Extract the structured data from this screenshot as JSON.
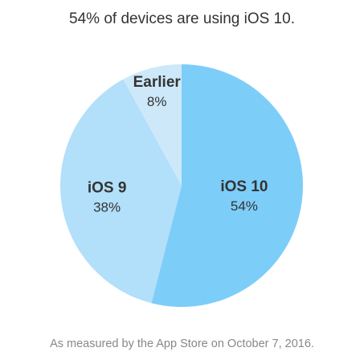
{
  "header": {
    "title": "54% of devices are using iOS 10."
  },
  "footer": {
    "caption": "As measured by the App Store on October 7, 2016."
  },
  "chart_data": {
    "type": "pie",
    "title": "54% of devices are using iOS 10.",
    "categories": [
      "iOS 10",
      "iOS 9",
      "Earlier"
    ],
    "values": [
      54,
      38,
      8
    ],
    "value_labels": [
      "54%",
      "38%",
      "8%"
    ],
    "colors": [
      "#7dcdf9",
      "#b2dff9",
      "#cde9f9"
    ],
    "start": "top",
    "direction": "clockwise",
    "legend": "none"
  }
}
